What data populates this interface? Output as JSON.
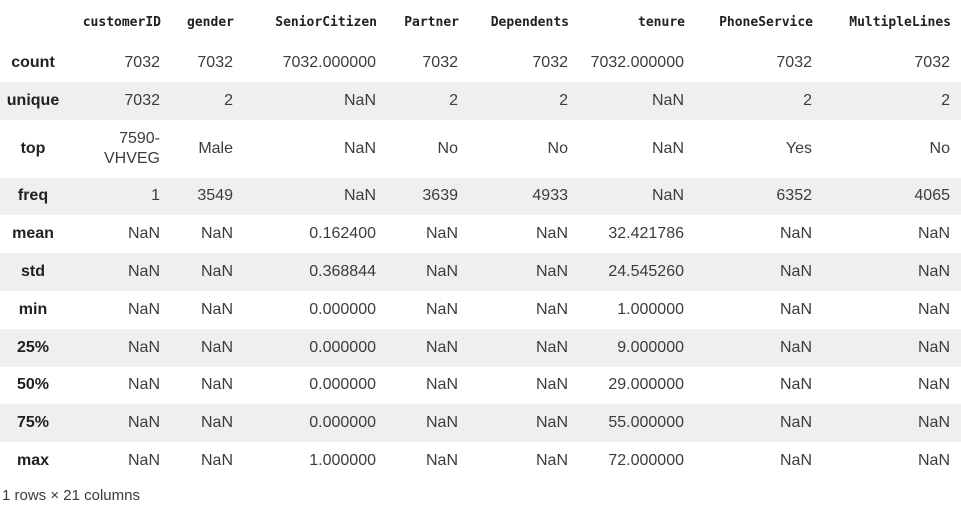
{
  "table": {
    "columns": [
      "customerID",
      "gender",
      "SeniorCitizen",
      "Partner",
      "Dependents",
      "tenure",
      "PhoneService",
      "MultipleLines"
    ],
    "rows": [
      {
        "label": "count",
        "cells": [
          "7032",
          "7032",
          "7032.000000",
          "7032",
          "7032",
          "7032.000000",
          "7032",
          "7032"
        ]
      },
      {
        "label": "unique",
        "cells": [
          "7032",
          "2",
          "NaN",
          "2",
          "2",
          "NaN",
          "2",
          "2"
        ]
      },
      {
        "label": "top",
        "cells": [
          "7590-VHVEG",
          "Male",
          "NaN",
          "No",
          "No",
          "NaN",
          "Yes",
          "No"
        ]
      },
      {
        "label": "freq",
        "cells": [
          "1",
          "3549",
          "NaN",
          "3639",
          "4933",
          "NaN",
          "6352",
          "4065"
        ]
      },
      {
        "label": "mean",
        "cells": [
          "NaN",
          "NaN",
          "0.162400",
          "NaN",
          "NaN",
          "32.421786",
          "NaN",
          "NaN"
        ]
      },
      {
        "label": "std",
        "cells": [
          "NaN",
          "NaN",
          "0.368844",
          "NaN",
          "NaN",
          "24.545260",
          "NaN",
          "NaN"
        ]
      },
      {
        "label": "min",
        "cells": [
          "NaN",
          "NaN",
          "0.000000",
          "NaN",
          "NaN",
          "1.000000",
          "NaN",
          "NaN"
        ]
      },
      {
        "label": "25%",
        "cells": [
          "NaN",
          "NaN",
          "0.000000",
          "NaN",
          "NaN",
          "9.000000",
          "NaN",
          "NaN"
        ]
      },
      {
        "label": "50%",
        "cells": [
          "NaN",
          "NaN",
          "0.000000",
          "NaN",
          "NaN",
          "29.000000",
          "NaN",
          "NaN"
        ]
      },
      {
        "label": "75%",
        "cells": [
          "NaN",
          "NaN",
          "0.000000",
          "NaN",
          "NaN",
          "55.000000",
          "NaN",
          "NaN"
        ]
      },
      {
        "label": "max",
        "cells": [
          "NaN",
          "NaN",
          "1.000000",
          "NaN",
          "NaN",
          "72.000000",
          "NaN",
          "NaN"
        ]
      }
    ]
  },
  "footer": {
    "shape_text": "1 rows × 21 columns"
  }
}
